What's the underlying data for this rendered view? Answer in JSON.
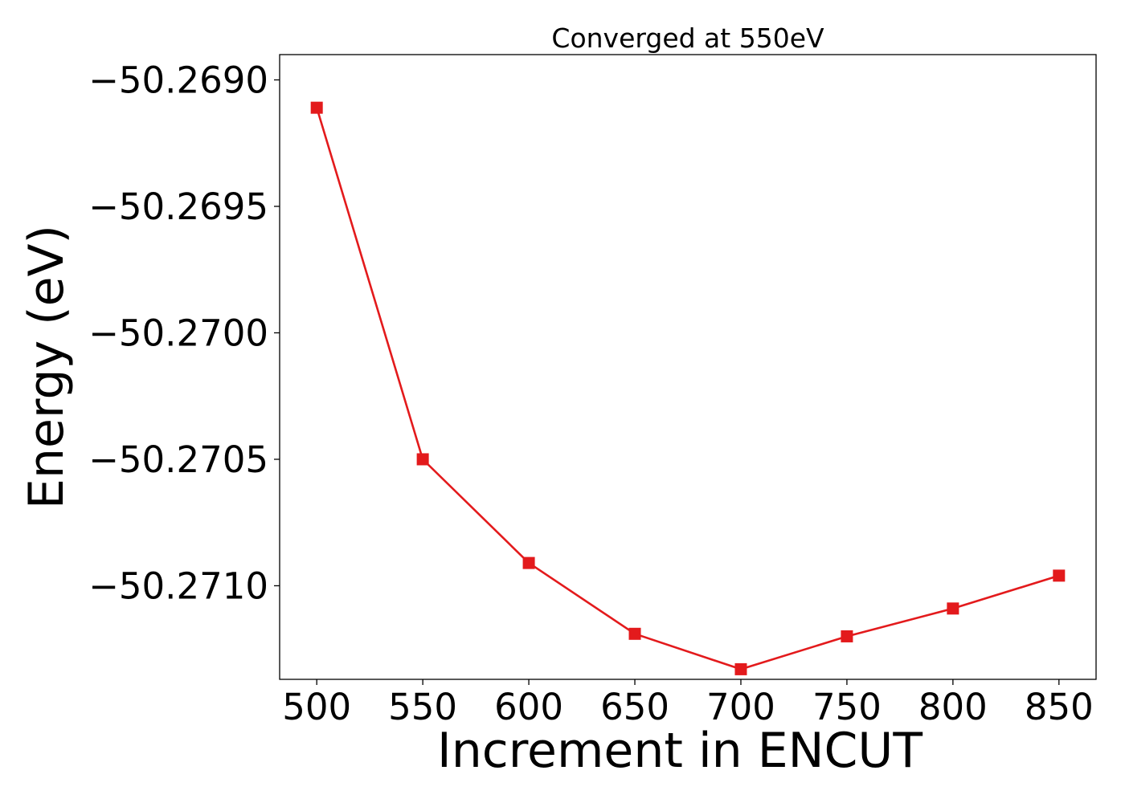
{
  "chart_data": {
    "type": "line",
    "title": "Converged at 550eV",
    "xlabel": "Increment in ENCUT",
    "ylabel": "Energy (eV)",
    "x": [
      500,
      550,
      600,
      650,
      700,
      750,
      800,
      850
    ],
    "series": [
      {
        "values": [
          -50.26911,
          -50.2705,
          -50.27091,
          -50.27119,
          -50.27133,
          -50.2712,
          -50.27109,
          -50.27096
        ],
        "color": "#e31a1c",
        "marker": "square"
      }
    ],
    "xlim": [
      482.5,
      867.5
    ],
    "ylim": [
      -50.27137,
      -50.2689
    ],
    "x_ticks": [
      500,
      550,
      600,
      650,
      700,
      750,
      800,
      850
    ],
    "x_tick_labels": [
      "500",
      "550",
      "600",
      "650",
      "700",
      "750",
      "800",
      "850"
    ],
    "y_ticks": [
      -50.269,
      -50.2695,
      -50.27,
      -50.2705,
      -50.271
    ],
    "y_tick_labels": [
      "−50.2690",
      "−50.2695",
      "−50.2700",
      "−50.2705",
      "−50.2710"
    ],
    "grid": false,
    "legend": "none"
  }
}
